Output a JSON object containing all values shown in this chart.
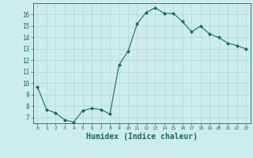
{
  "x": [
    0,
    1,
    2,
    3,
    4,
    5,
    6,
    7,
    8,
    9,
    10,
    11,
    12,
    13,
    14,
    15,
    16,
    17,
    18,
    19,
    20,
    21,
    22,
    23
  ],
  "y": [
    9.7,
    7.7,
    7.4,
    6.8,
    6.6,
    7.6,
    7.8,
    7.7,
    7.3,
    11.6,
    12.8,
    15.2,
    16.2,
    16.6,
    16.1,
    16.1,
    15.4,
    14.5,
    15.0,
    14.3,
    14.0,
    13.5,
    13.3,
    13.0
  ],
  "line_color": "#1a6b5a",
  "marker": "D",
  "marker_size": 2,
  "bg_color": "#ceecea",
  "grid_color": "#aed8d4",
  "tick_color": "#1a6b5a",
  "xlabel": "Humidex (Indice chaleur)",
  "xlabel_fontsize": 7,
  "ylabel_ticks": [
    7,
    8,
    9,
    10,
    11,
    12,
    13,
    14,
    15,
    16
  ],
  "xlim": [
    -0.5,
    23.5
  ],
  "ylim": [
    6.5,
    17.0
  ]
}
